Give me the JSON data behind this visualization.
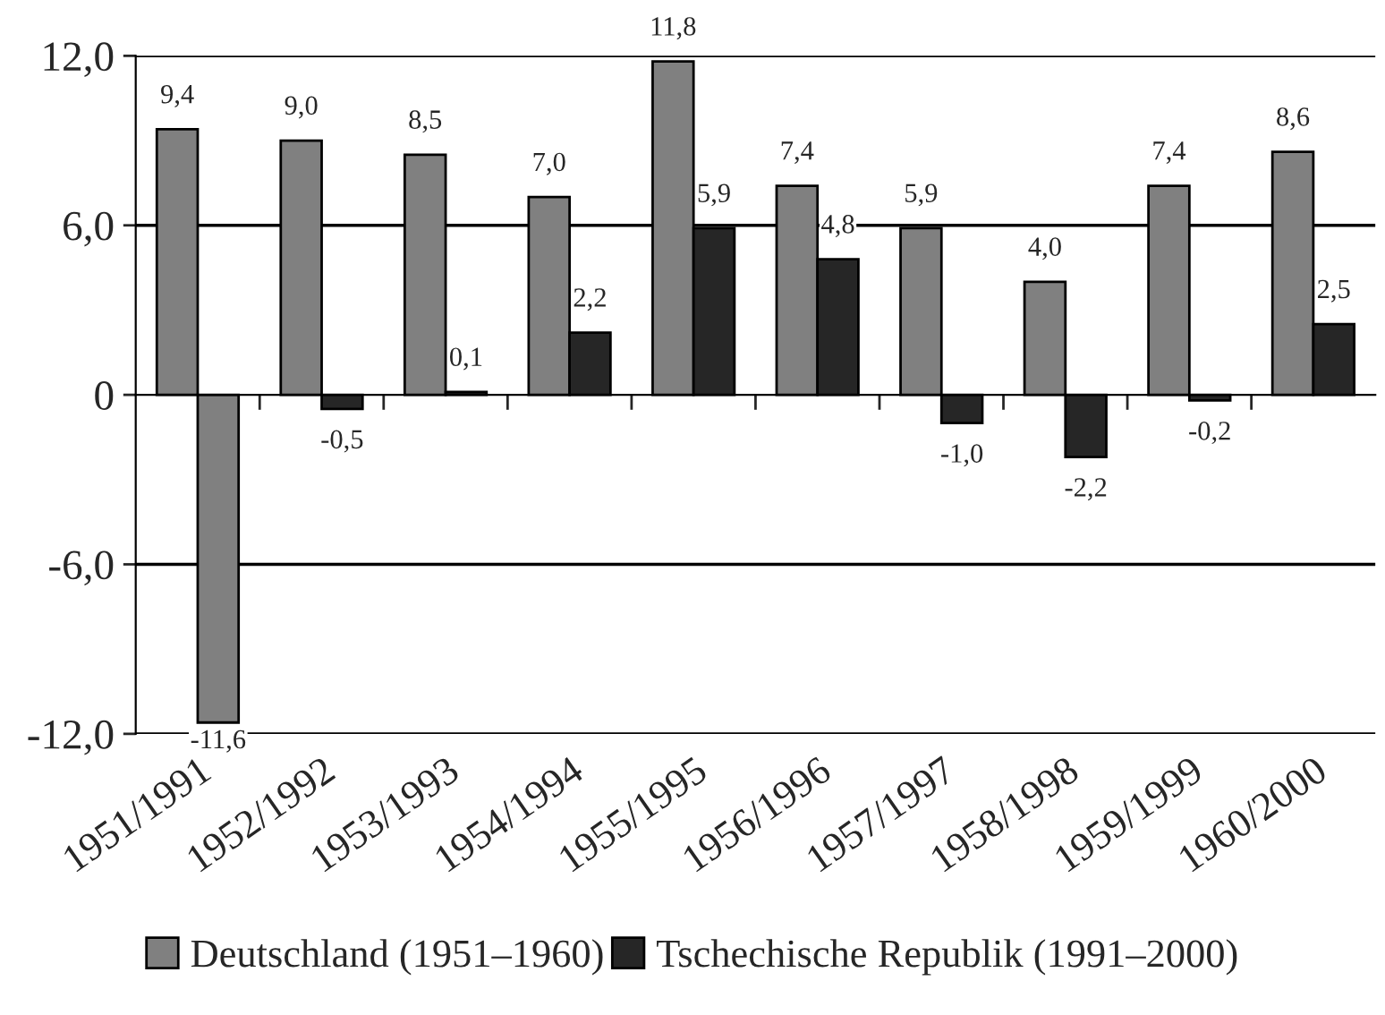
{
  "chart_data": {
    "type": "bar",
    "categories": [
      "1951/1991",
      "1952/1992",
      "1953/1993",
      "1954/1994",
      "1955/1995",
      "1956/1996",
      "1957/1997",
      "1958/1998",
      "1959/1999",
      "1960/2000"
    ],
    "series": [
      {
        "name": "Deutschland (1951–1960)",
        "color": "#808080",
        "values": [
          9.4,
          9.0,
          8.5,
          7.0,
          11.8,
          7.4,
          5.9,
          4.0,
          7.4,
          8.6
        ],
        "value_labels": [
          "9,4",
          "9,0",
          "8,5",
          "7,0",
          "11,8",
          "7,4",
          "5,9",
          "4,0",
          "7,4",
          "8,6"
        ]
      },
      {
        "name": "Tschechische Republik (1991–2000)",
        "color": "#262626",
        "colors": [
          "#808080",
          "#262626",
          "#262626",
          "#262626",
          "#262626",
          "#262626",
          "#262626",
          "#262626",
          "#262626",
          "#262626"
        ],
        "values": [
          -11.6,
          -0.5,
          0.1,
          2.2,
          5.9,
          4.8,
          -1.0,
          -2.2,
          -0.2,
          2.5
        ],
        "value_labels": [
          "-11,6",
          "-0,5",
          "0,1",
          "2,2",
          "5,9",
          "4,8",
          "-1,0",
          "-2,2",
          "-0,2",
          "2,5"
        ]
      }
    ],
    "ylim": [
      -12,
      12
    ],
    "yticks": [
      {
        "value": -12,
        "label": "-12,0"
      },
      {
        "value": -6,
        "label": "-6,0"
      },
      0,
      {
        "value": 6,
        "label": "6,0"
      },
      {
        "value": 12,
        "label": "12,0"
      }
    ],
    "grid": "y",
    "legend": "bottom"
  }
}
